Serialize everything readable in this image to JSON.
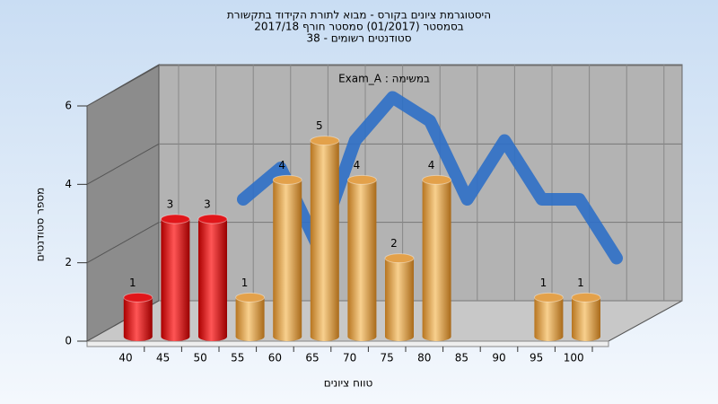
{
  "chart_data": {
    "type": "bar",
    "title_lines": [
      "היסטוגרמת ציונים בקורס - מבוא לתורת הקידוד בתקשורת",
      "בסמסטר  (01/2017)  סמסטר חורף 2017/18",
      "סטודנטים רשומים - 38"
    ],
    "subtitle": "Exam_A : במשימה",
    "y_label": "מספר סטודנטים",
    "x_label": "טווח ציונים",
    "categories": [
      "40",
      "45",
      "50",
      "55",
      "60",
      "65",
      "70",
      "75",
      "80",
      "85",
      "90",
      "95",
      "100"
    ],
    "values": [
      1,
      3,
      3,
      1,
      4,
      5,
      4,
      2,
      4,
      0,
      0,
      1,
      1
    ],
    "colors": [
      "#e0161a",
      "#e0161a",
      "#e0161a",
      "#e3a14a",
      "#e3a14a",
      "#e3a14a",
      "#e3a14a",
      "#e3a14a",
      "#e3a14a",
      "#e3a14a",
      "#e3a14a",
      "#e3a14a",
      "#e3a14a"
    ],
    "curve": {
      "color": "#2e6fc6",
      "values": [
        null,
        null,
        3.0,
        3.8,
        1.8,
        4.5,
        5.6,
        5.0,
        3.0,
        4.5,
        3.0,
        3.0,
        1.5
      ]
    },
    "ylim": [
      0,
      6
    ],
    "yticks": [
      0,
      2,
      4,
      6
    ],
    "grid": true
  }
}
